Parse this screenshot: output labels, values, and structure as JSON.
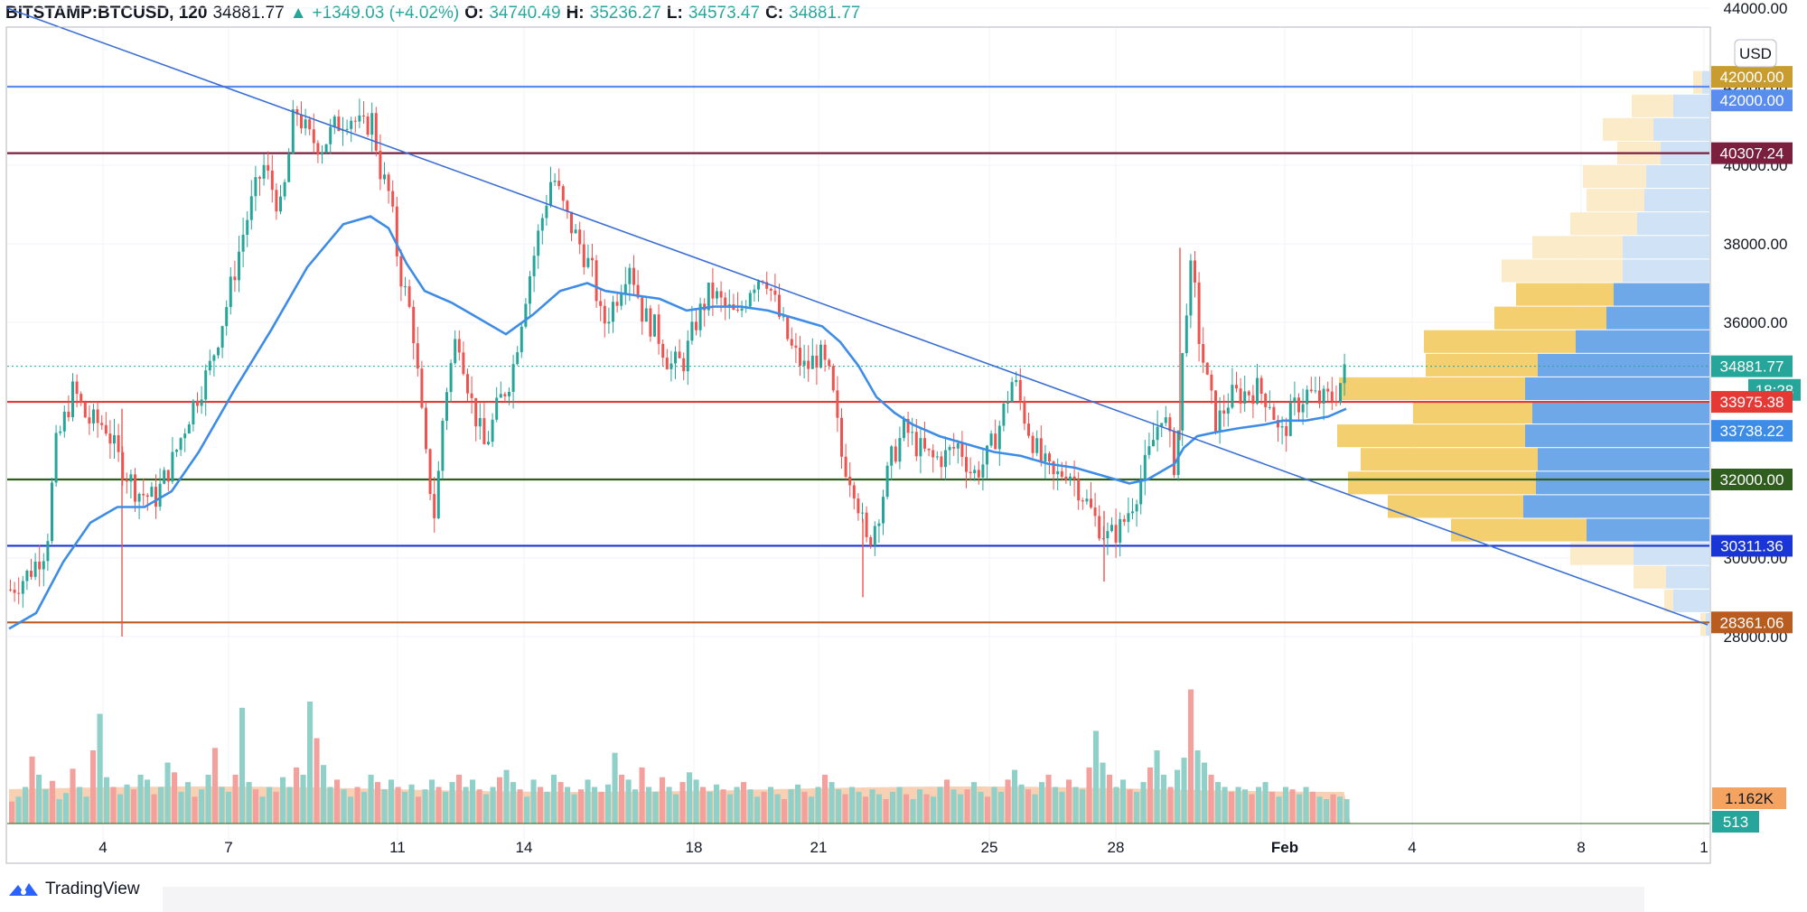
{
  "header": {
    "symbol": "BITSTAMP:BTCUSD, 120",
    "last": "34881.77",
    "change": "+1349.03 (+4.02%)",
    "o_label": "O:",
    "o": "34740.49",
    "h_label": "H:",
    "h": "35236.27",
    "l_label": "L:",
    "l": "34573.47",
    "c_label": "C:",
    "c": "34881.77"
  },
  "currency_button": "USD",
  "brand": "TradingView",
  "colors": {
    "up": "#26a69a",
    "down": "#ef5350",
    "ma": "#3d8de6",
    "trendline": "#3a6fd6"
  },
  "chart_data": {
    "type": "candlestick",
    "symbol": "BTCUSD",
    "exchange": "BITSTAMP",
    "interval_minutes": 120,
    "ylim": [
      26000,
      46000
    ],
    "y_ticks": [
      28000,
      30000,
      32000,
      34000,
      36000,
      38000,
      40000,
      42000,
      44000
    ],
    "y_tick_labels": [
      "28000.00",
      "30000.00",
      "32000.00",
      "34000.00",
      "36000.00",
      "38000.00",
      "40000.00",
      "42000.00",
      "44000.00"
    ],
    "x_tick_labels": [
      "4",
      "7",
      "11",
      "14",
      "18",
      "21",
      "25",
      "28",
      "Feb",
      "4",
      "8",
      "1"
    ],
    "x_tick_pos": [
      114,
      253,
      440,
      580,
      768,
      906,
      1095,
      1235,
      1422,
      1563,
      1750,
      1886
    ],
    "price_path": [
      [
        10,
        29200
      ],
      [
        30,
        29600
      ],
      [
        50,
        30300
      ],
      [
        60,
        32800
      ],
      [
        80,
        34300
      ],
      [
        95,
        33500
      ],
      [
        115,
        33400
      ],
      [
        130,
        32500
      ],
      [
        150,
        31700
      ],
      [
        170,
        31500
      ],
      [
        190,
        32500
      ],
      [
        210,
        33800
      ],
      [
        230,
        34800
      ],
      [
        250,
        36500
      ],
      [
        270,
        38500
      ],
      [
        290,
        40000
      ],
      [
        310,
        38800
      ],
      [
        325,
        41500
      ],
      [
        340,
        40700
      ],
      [
        355,
        40500
      ],
      [
        370,
        41000
      ],
      [
        385,
        41300
      ],
      [
        400,
        40900
      ],
      [
        410,
        41200
      ],
      [
        420,
        39800
      ],
      [
        430,
        39200
      ],
      [
        440,
        37400
      ],
      [
        455,
        36000
      ],
      [
        470,
        32500
      ],
      [
        480,
        31000
      ],
      [
        490,
        34000
      ],
      [
        505,
        35800
      ],
      [
        520,
        34000
      ],
      [
        535,
        32800
      ],
      [
        550,
        33900
      ],
      [
        565,
        34700
      ],
      [
        580,
        36700
      ],
      [
        595,
        38300
      ],
      [
        610,
        39800
      ],
      [
        625,
        38700
      ],
      [
        640,
        38000
      ],
      [
        655,
        37200
      ],
      [
        665,
        35900
      ],
      [
        680,
        36600
      ],
      [
        695,
        37600
      ],
      [
        710,
        36200
      ],
      [
        725,
        35800
      ],
      [
        740,
        34900
      ],
      [
        755,
        35000
      ],
      [
        770,
        36100
      ],
      [
        785,
        36800
      ],
      [
        800,
        36400
      ],
      [
        815,
        36100
      ],
      [
        830,
        37000
      ],
      [
        845,
        37300
      ],
      [
        860,
        36200
      ],
      [
        875,
        35300
      ],
      [
        890,
        34800
      ],
      [
        905,
        35200
      ],
      [
        918,
        34500
      ],
      [
        930,
        32600
      ],
      [
        945,
        31800
      ],
      [
        958,
        30300
      ],
      [
        970,
        31100
      ],
      [
        985,
        32500
      ],
      [
        1000,
        33300
      ],
      [
        1015,
        32800
      ],
      [
        1030,
        32500
      ],
      [
        1045,
        32600
      ],
      [
        1060,
        32900
      ],
      [
        1075,
        32100
      ],
      [
        1090,
        32500
      ],
      [
        1105,
        33400
      ],
      [
        1120,
        34600
      ],
      [
        1135,
        33400
      ],
      [
        1150,
        32500
      ],
      [
        1165,
        32000
      ],
      [
        1180,
        32300
      ],
      [
        1195,
        31700
      ],
      [
        1210,
        31000
      ],
      [
        1225,
        30500
      ],
      [
        1240,
        30800
      ],
      [
        1255,
        31600
      ],
      [
        1270,
        32600
      ],
      [
        1285,
        33800
      ],
      [
        1300,
        32200
      ],
      [
        1310,
        36200
      ],
      [
        1318,
        37500
      ],
      [
        1325,
        35700
      ],
      [
        1335,
        34400
      ],
      [
        1345,
        33400
      ],
      [
        1360,
        34100
      ],
      [
        1375,
        34200
      ],
      [
        1390,
        34300
      ],
      [
        1405,
        34000
      ],
      [
        1415,
        33000
      ],
      [
        1430,
        33800
      ],
      [
        1445,
        34200
      ],
      [
        1460,
        34000
      ],
      [
        1475,
        34100
      ],
      [
        1490,
        34881.77
      ]
    ],
    "moving_average": [
      [
        10,
        28200
      ],
      [
        40,
        28600
      ],
      [
        70,
        29900
      ],
      [
        100,
        30900
      ],
      [
        130,
        31300
      ],
      [
        160,
        31300
      ],
      [
        190,
        31700
      ],
      [
        220,
        32700
      ],
      [
        260,
        34300
      ],
      [
        300,
        35800
      ],
      [
        340,
        37400
      ],
      [
        380,
        38500
      ],
      [
        410,
        38700
      ],
      [
        430,
        38400
      ],
      [
        450,
        37500
      ],
      [
        470,
        36800
      ],
      [
        500,
        36500
      ],
      [
        530,
        36100
      ],
      [
        560,
        35700
      ],
      [
        590,
        36200
      ],
      [
        620,
        36800
      ],
      [
        650,
        37000
      ],
      [
        670,
        36800
      ],
      [
        700,
        36700
      ],
      [
        730,
        36600
      ],
      [
        760,
        36300
      ],
      [
        790,
        36400
      ],
      [
        820,
        36400
      ],
      [
        850,
        36300
      ],
      [
        880,
        36100
      ],
      [
        910,
        35900
      ],
      [
        930,
        35500
      ],
      [
        950,
        34900
      ],
      [
        970,
        34100
      ],
      [
        990,
        33700
      ],
      [
        1010,
        33400
      ],
      [
        1040,
        33100
      ],
      [
        1070,
        32900
      ],
      [
        1100,
        32700
      ],
      [
        1130,
        32600
      ],
      [
        1160,
        32400
      ],
      [
        1190,
        32300
      ],
      [
        1220,
        32100
      ],
      [
        1250,
        31900
      ],
      [
        1270,
        32000
      ],
      [
        1300,
        32400
      ],
      [
        1310,
        32800
      ],
      [
        1325,
        33100
      ],
      [
        1345,
        33200
      ],
      [
        1370,
        33300
      ],
      [
        1400,
        33400
      ],
      [
        1420,
        33500
      ],
      [
        1445,
        33500
      ],
      [
        1470,
        33600
      ],
      [
        1490,
        33800
      ]
    ],
    "horizontal_levels": [
      {
        "name": "resistance-42000",
        "price": 42000,
        "label": "42000.00",
        "color": "#5b8def"
      },
      {
        "name": "resistance-40307",
        "price": 40307.24,
        "label": "40307.24",
        "color": "#7a1f3d"
      },
      {
        "name": "level-33975",
        "price": 33975.38,
        "label": "33975.38",
        "color": "#e53935"
      },
      {
        "name": "support-32000",
        "price": 32000,
        "label": "32000.00",
        "color": "#2f5e1e"
      },
      {
        "name": "support-30311",
        "price": 30311.36,
        "label": "30311.36",
        "color": "#1a35d6"
      },
      {
        "name": "support-28361",
        "price": 28361.06,
        "label": "28361.06",
        "color": "#b85c1f"
      }
    ],
    "trendline": {
      "from": [
        8,
        44000
      ],
      "to": [
        1890,
        28300
      ]
    },
    "price_tags": [
      {
        "label": "42000.00",
        "price": 42250,
        "bg": "#c89c2f",
        "fg": "#ffffff"
      },
      {
        "label": "42000.00",
        "price": 41650,
        "bg": "#5b8def",
        "fg": "#ffffff"
      },
      {
        "label": "40307.24",
        "price": 40307.24,
        "bg": "#7a1f3d",
        "fg": "#ffffff"
      },
      {
        "label": "34881.77",
        "price": 34881.77,
        "bg": "#26a69a",
        "fg": "#ffffff"
      },
      {
        "label": "18:28",
        "price": 34281,
        "bg": "#26a69a",
        "fg": "#ffffff"
      },
      {
        "label": "33975.38",
        "price": 33975.38,
        "bg": "#e53935",
        "fg": "#ffffff"
      },
      {
        "label": "33738.22",
        "price": 33238,
        "bg": "#3d8de6",
        "fg": "#ffffff"
      },
      {
        "label": "32000.00",
        "price": 32000,
        "bg": "#2f5e1e",
        "fg": "#ffffff"
      },
      {
        "label": "30311.36",
        "price": 30311.36,
        "bg": "#1a35d6",
        "fg": "#ffffff"
      },
      {
        "label": "28361.06",
        "price": 28361.06,
        "bg": "#b85c1f",
        "fg": "#ffffff"
      },
      {
        "label": "1.162K",
        "price": 26400,
        "bg": "#f4a460",
        "fg": "#131722"
      },
      {
        "label": "513",
        "price": 25900,
        "bg": "#26a69a",
        "fg": "#ffffff"
      }
    ],
    "volume_profile": [
      {
        "price_lo": 28000,
        "price_hi": 28600,
        "buy": 6,
        "sell": 4
      },
      {
        "price_lo": 28600,
        "price_hi": 29200,
        "buy": 10,
        "sell": 40
      },
      {
        "price_lo": 29200,
        "price_hi": 29800,
        "buy": 36,
        "sell": 48
      },
      {
        "price_lo": 29800,
        "price_hi": 30400,
        "buy": 70,
        "sell": 84
      },
      {
        "price_lo": 30400,
        "price_hi": 31000,
        "buy": 150,
        "sell": 136
      },
      {
        "price_lo": 31000,
        "price_hi": 31600,
        "buy": 150,
        "sell": 206
      },
      {
        "price_lo": 31600,
        "price_hi": 32200,
        "buy": 208,
        "sell": 192
      },
      {
        "price_lo": 32200,
        "price_hi": 32800,
        "buy": 196,
        "sell": 190
      },
      {
        "price_lo": 32800,
        "price_hi": 33400,
        "buy": 208,
        "sell": 204
      },
      {
        "price_lo": 33400,
        "price_hi": 34000,
        "buy": 132,
        "sell": 196
      },
      {
        "price_lo": 34000,
        "price_hi": 34600,
        "buy": 206,
        "sell": 204
      },
      {
        "price_lo": 34600,
        "price_hi": 35200,
        "buy": 124,
        "sell": 190
      },
      {
        "price_lo": 35200,
        "price_hi": 35800,
        "buy": 168,
        "sell": 148
      },
      {
        "price_lo": 35800,
        "price_hi": 36400,
        "buy": 124,
        "sell": 114
      },
      {
        "price_lo": 36400,
        "price_hi": 37000,
        "buy": 108,
        "sell": 106
      },
      {
        "price_lo": 37000,
        "price_hi": 37600,
        "buy": 134,
        "sell": 96
      },
      {
        "price_lo": 37600,
        "price_hi": 38200,
        "buy": 100,
        "sell": 96
      },
      {
        "price_lo": 38200,
        "price_hi": 38800,
        "buy": 74,
        "sell": 80
      },
      {
        "price_lo": 38800,
        "price_hi": 39400,
        "buy": 64,
        "sell": 72
      },
      {
        "price_lo": 39400,
        "price_hi": 40000,
        "buy": 70,
        "sell": 70
      },
      {
        "price_lo": 40000,
        "price_hi": 40600,
        "buy": 48,
        "sell": 54
      },
      {
        "price_lo": 40600,
        "price_hi": 41200,
        "buy": 56,
        "sell": 62
      },
      {
        "price_lo": 41200,
        "price_hi": 41800,
        "buy": 46,
        "sell": 40
      },
      {
        "price_lo": 41800,
        "price_hi": 42400,
        "buy": 10,
        "sell": 8
      }
    ],
    "volume_bars": [
      18,
      22,
      30,
      55,
      40,
      28,
      35,
      20,
      25,
      45,
      30,
      22,
      60,
      90,
      38,
      30,
      24,
      32,
      28,
      40,
      36,
      24,
      30,
      50,
      42,
      26,
      34,
      22,
      28,
      40,
      62,
      30,
      26,
      40,
      95,
      34,
      28,
      22,
      30,
      26,
      38,
      30,
      46,
      40,
      100,
      70,
      48,
      30,
      36,
      28,
      22,
      30,
      26,
      40,
      34,
      28,
      36,
      30,
      26,
      32,
      22,
      28,
      36,
      30,
      26,
      34,
      40,
      30,
      36,
      28,
      24,
      30,
      38,
      44,
      34,
      28,
      22,
      36,
      30,
      26,
      40,
      34,
      30,
      24,
      28,
      36,
      30,
      26,
      32,
      58,
      40,
      36,
      28,
      46,
      30,
      26,
      38,
      30,
      24,
      34,
      42,
      36,
      30,
      26,
      32,
      28,
      24,
      30,
      34,
      28,
      22,
      26,
      30,
      24,
      20,
      28,
      32,
      26,
      22,
      30,
      40,
      34,
      28,
      24,
      30,
      26,
      22,
      28,
      24,
      20,
      26,
      30,
      24,
      20,
      28,
      24,
      22,
      30,
      36,
      28,
      24,
      28,
      34,
      26,
      22,
      30,
      26,
      36,
      44,
      32,
      28,
      24,
      34,
      40,
      30,
      26,
      36,
      30,
      28,
      46,
      76,
      50,
      40,
      30,
      36,
      28,
      26,
      34,
      46,
      60,
      40,
      30,
      44,
      54,
      110,
      60,
      50,
      40,
      34,
      30,
      26,
      30,
      28,
      24,
      30,
      34,
      26,
      22,
      30,
      28,
      24,
      30,
      26,
      22,
      20,
      24,
      22,
      20
    ]
  }
}
